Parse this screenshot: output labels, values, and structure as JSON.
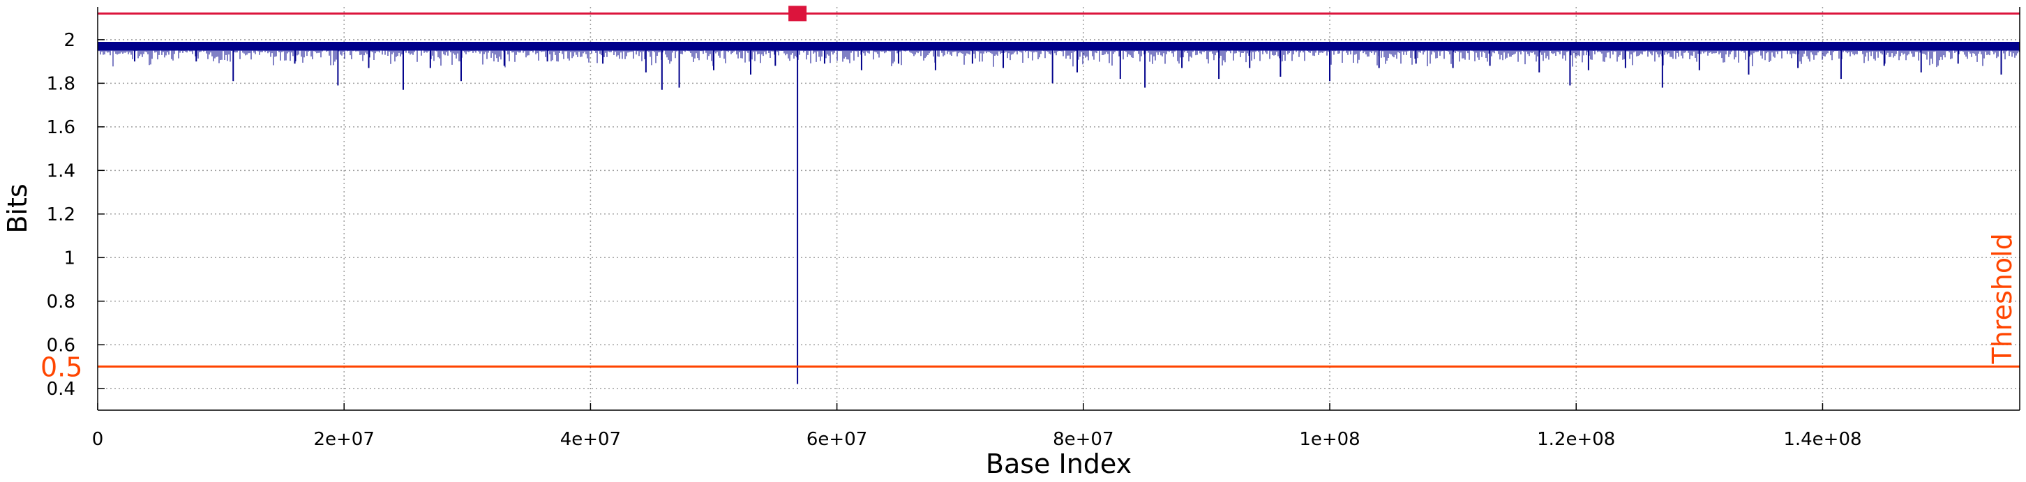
{
  "chart_data": {
    "type": "line",
    "xlabel": "Base Index",
    "ylabel": "Bits",
    "xlim": [
      0,
      156000000
    ],
    "ylim": [
      0.3,
      2.15
    ],
    "grid": true,
    "x_ticks": [
      0,
      20000000,
      40000000,
      60000000,
      80000000,
      100000000,
      120000000,
      140000000
    ],
    "x_tick_labels": [
      "0",
      "2e+07",
      "4e+07",
      "6e+07",
      "8e+07",
      "1e+08",
      "1.2e+08",
      "1.4e+08"
    ],
    "y_ticks": [
      0.4,
      0.6,
      0.8,
      1.0,
      1.2,
      1.4,
      1.6,
      1.8,
      2.0
    ],
    "y_tick_labels": [
      "0.4",
      "0.6",
      "0.8",
      "1",
      "1.2",
      "1.4",
      "1.6",
      "1.8",
      "2"
    ],
    "series": [
      {
        "color": "#00008b",
        "band": {
          "x": [
            0,
            156000000
          ],
          "top": 1.99,
          "dense_bottom": 1.95
        },
        "dips": [
          {
            "x": 3000000,
            "y": 1.9
          },
          {
            "x": 8000000,
            "y": 1.9
          },
          {
            "x": 11000000,
            "y": 1.81
          },
          {
            "x": 16000000,
            "y": 1.89
          },
          {
            "x": 19500000,
            "y": 1.79
          },
          {
            "x": 22000000,
            "y": 1.87
          },
          {
            "x": 24800000,
            "y": 1.77
          },
          {
            "x": 27000000,
            "y": 1.87
          },
          {
            "x": 29500000,
            "y": 1.81
          },
          {
            "x": 33000000,
            "y": 1.88
          },
          {
            "x": 36500000,
            "y": 1.9
          },
          {
            "x": 41000000,
            "y": 1.89
          },
          {
            "x": 44500000,
            "y": 1.85
          },
          {
            "x": 45800000,
            "y": 1.77
          },
          {
            "x": 47200000,
            "y": 1.78
          },
          {
            "x": 50000000,
            "y": 1.86
          },
          {
            "x": 53000000,
            "y": 1.84
          },
          {
            "x": 55000000,
            "y": 1.88
          },
          {
            "x": 56800000,
            "y": 0.42
          },
          {
            "x": 59000000,
            "y": 1.89
          },
          {
            "x": 62000000,
            "y": 1.86
          },
          {
            "x": 65000000,
            "y": 1.89
          },
          {
            "x": 68000000,
            "y": 1.86
          },
          {
            "x": 71000000,
            "y": 1.89
          },
          {
            "x": 73500000,
            "y": 1.87
          },
          {
            "x": 77500000,
            "y": 1.8
          },
          {
            "x": 79500000,
            "y": 1.85
          },
          {
            "x": 83000000,
            "y": 1.82
          },
          {
            "x": 85000000,
            "y": 1.78
          },
          {
            "x": 88000000,
            "y": 1.87
          },
          {
            "x": 91000000,
            "y": 1.82
          },
          {
            "x": 93500000,
            "y": 1.87
          },
          {
            "x": 96000000,
            "y": 1.83
          },
          {
            "x": 100000000,
            "y": 1.81
          },
          {
            "x": 104000000,
            "y": 1.87
          },
          {
            "x": 107000000,
            "y": 1.89
          },
          {
            "x": 110000000,
            "y": 1.87
          },
          {
            "x": 113000000,
            "y": 1.88
          },
          {
            "x": 117000000,
            "y": 1.85
          },
          {
            "x": 119500000,
            "y": 1.79
          },
          {
            "x": 121000000,
            "y": 1.86
          },
          {
            "x": 124000000,
            "y": 1.87
          },
          {
            "x": 127000000,
            "y": 1.78
          },
          {
            "x": 130000000,
            "y": 1.86
          },
          {
            "x": 134000000,
            "y": 1.84
          },
          {
            "x": 138000000,
            "y": 1.87
          },
          {
            "x": 141500000,
            "y": 1.82
          },
          {
            "x": 145000000,
            "y": 1.88
          },
          {
            "x": 148000000,
            "y": 1.85
          },
          {
            "x": 151000000,
            "y": 1.89
          },
          {
            "x": 154500000,
            "y": 1.84
          }
        ]
      }
    ],
    "reference_lines": [
      {
        "y": 2.12,
        "color": "#dc143c"
      },
      {
        "y": 0.5,
        "color": "#ff4500",
        "value_label": "0.5",
        "label": "Threshold"
      }
    ],
    "markers": [
      {
        "x": 56800000,
        "y": 2.12,
        "color": "#dc143c",
        "shape": "square"
      }
    ]
  }
}
